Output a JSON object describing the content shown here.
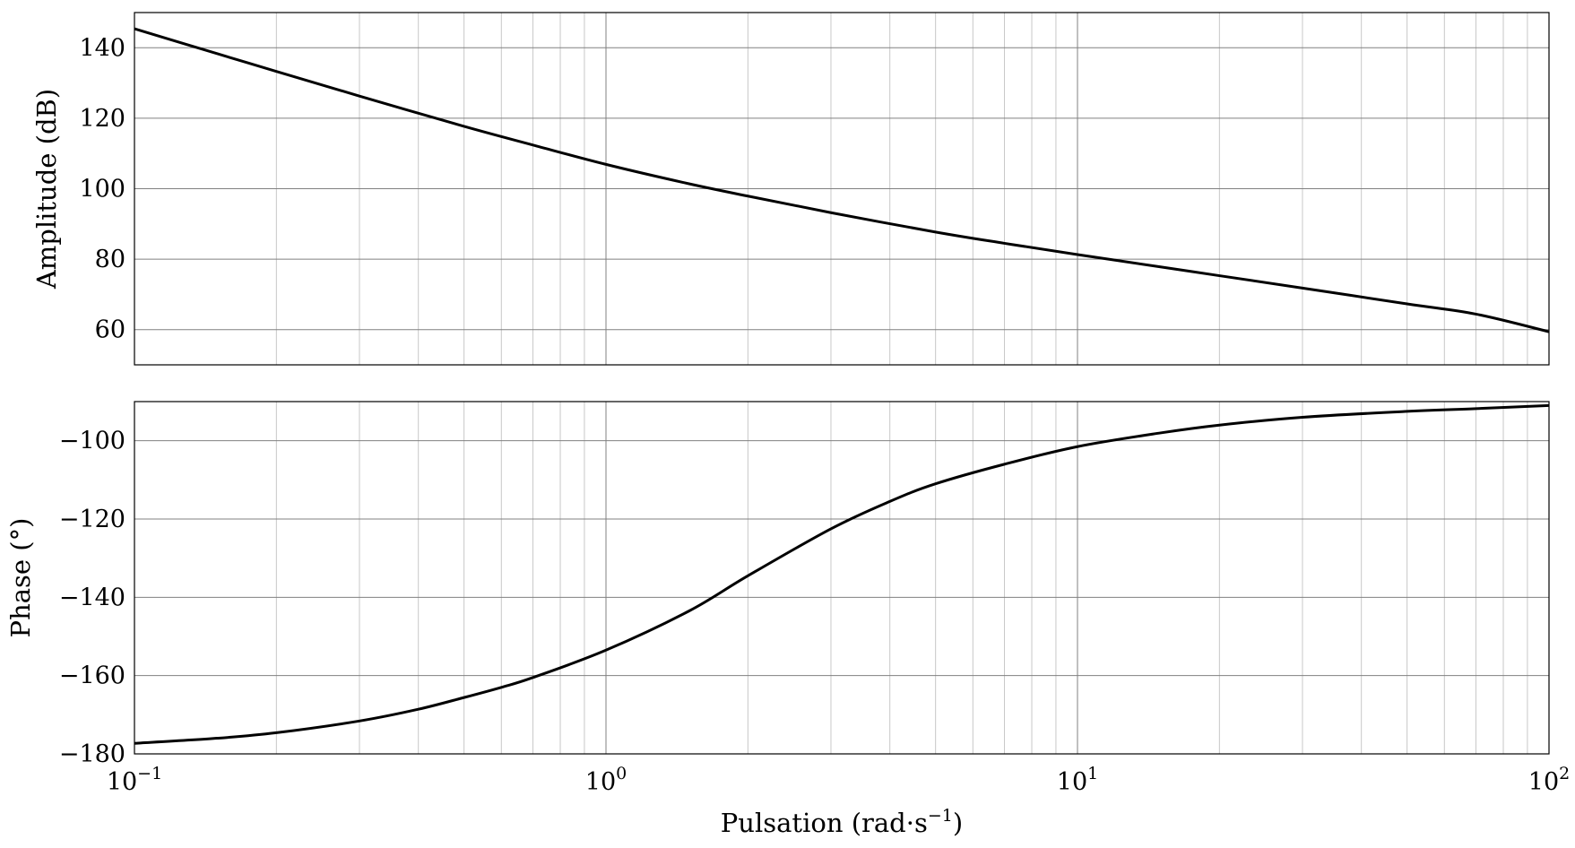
{
  "chart_data": [
    {
      "type": "line",
      "ylabel": "Amplitude (dB)",
      "xscale": "log",
      "xlim": [
        0.1,
        100
      ],
      "ylim": [
        50,
        150
      ],
      "grid": true,
      "xticks": [],
      "yticks": [
        {
          "value": 60,
          "label": "60"
        },
        {
          "value": 80,
          "label": "80"
        },
        {
          "value": 100,
          "label": "100"
        },
        {
          "value": 120,
          "label": "120"
        },
        {
          "value": 140,
          "label": "140"
        }
      ],
      "series": [
        {
          "x": [
            0.1,
            0.15,
            0.2,
            0.3,
            0.5,
            0.7,
            1,
            1.5,
            2,
            3,
            5,
            7,
            10,
            15,
            20,
            30,
            50,
            70,
            100
          ],
          "y": [
            145.4,
            138.3,
            133.3,
            126.3,
            117.7,
            112.4,
            106.9,
            101.4,
            97.9,
            93.2,
            87.7,
            84.5,
            81.3,
            77.8,
            75.3,
            71.8,
            67.3,
            64.4,
            59.4
          ]
        }
      ]
    },
    {
      "type": "line",
      "ylabel": "Phase (°)",
      "xlabel": "Pulsation (rad·s",
      "xlabel_exp": "−1",
      "xlabel_tail": ")",
      "xscale": "log",
      "xlim": [
        0.1,
        100
      ],
      "ylim": [
        -180,
        -90
      ],
      "grid": true,
      "xticks": [
        {
          "value": 0.1,
          "base": "10",
          "exp": "−1"
        },
        {
          "value": 1,
          "base": "10",
          "exp": "0"
        },
        {
          "value": 10,
          "base": "10",
          "exp": "1"
        },
        {
          "value": 100,
          "base": "10",
          "exp": "2"
        }
      ],
      "yticks": [
        {
          "value": -100,
          "label": "−100"
        },
        {
          "value": -120,
          "label": "−120"
        },
        {
          "value": -140,
          "label": "−140"
        },
        {
          "value": -160,
          "label": "−160"
        },
        {
          "value": -180,
          "label": "−180"
        }
      ],
      "series": [
        {
          "x": [
            0.1,
            0.15,
            0.2,
            0.3,
            0.4,
            0.5,
            0.6,
            0.7,
            1,
            1.5,
            2,
            3,
            4,
            5,
            7,
            10,
            15,
            20,
            30,
            50,
            70,
            100
          ],
          "y": [
            -177.3,
            -176,
            -174.6,
            -171.6,
            -168.6,
            -165.6,
            -163,
            -160.5,
            -153.5,
            -143.5,
            -134.5,
            -122.5,
            -115.5,
            -111,
            -106,
            -101.5,
            -98,
            -96,
            -94,
            -92.5,
            -91.8,
            -91
          ]
        }
      ]
    }
  ]
}
